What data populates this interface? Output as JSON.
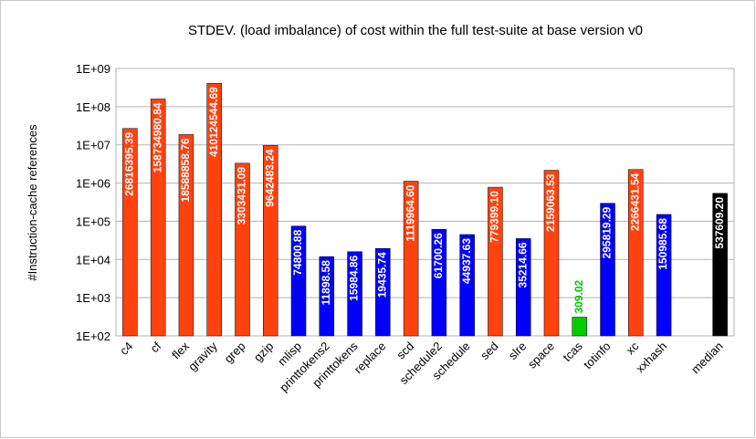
{
  "chart_data": {
    "type": "bar",
    "title": "STDEV. (load imbalance) of cost within the full test-suite at base version v0",
    "y_label": "#Instruction-cache references",
    "categories": [
      "c4",
      "cf",
      "flex",
      "gravity",
      "grep",
      "gzip",
      "mlisp",
      "printtokens2",
      "printtokens",
      "replace",
      "scd",
      "schedule2",
      "schedule",
      "sed",
      "slre",
      "space",
      "tcas",
      "totinfo",
      "xc",
      "xxhash",
      null,
      "median"
    ],
    "values": [
      26816395.39,
      158734980.84,
      18588858.76,
      410124544.69,
      3303431.09,
      9642483.24,
      74800.88,
      11898.58,
      15984.86,
      19435.74,
      1119964.6,
      61700.26,
      44937.63,
      779399.1,
      35214.66,
      2159063.53,
      309.02,
      295819.29,
      2266431.54,
      150985.68,
      null,
      537609.2
    ],
    "value_labels": [
      "26816395.39",
      "158734980.84",
      "18588858.76",
      "410124544.69",
      "3303431.09",
      "9642483.24",
      "74800.88",
      "11898.58",
      "15984.86",
      "19435.74",
      "1119964.60",
      "61700.26",
      "44937.63",
      "779399.10",
      "35214.66",
      "2159063.53",
      "309.02",
      "295819.29",
      "2266431.54",
      "150985.68",
      null,
      "537609.20"
    ],
    "colors": [
      "#ff420e",
      "#ff420e",
      "#ff420e",
      "#ff420e",
      "#ff420e",
      "#ff420e",
      "#0000ff",
      "#0000ff",
      "#0000ff",
      "#0000ff",
      "#ff420e",
      "#0000ff",
      "#0000ff",
      "#ff420e",
      "#0000ff",
      "#ff420e",
      "#00cc00",
      "#0000ff",
      "#ff420e",
      "#0000ff",
      null,
      "#000000"
    ],
    "log_scale": true,
    "ylim": [
      100,
      1000000000
    ],
    "yticks": [
      {
        "value": 100,
        "label": "1E+02"
      },
      {
        "value": 1000,
        "label": "1E+03"
      },
      {
        "value": 10000,
        "label": "1E+04"
      },
      {
        "value": 100000,
        "label": "1E+05"
      },
      {
        "value": 1000000,
        "label": "1E+06"
      },
      {
        "value": 10000000,
        "label": "1E+07"
      },
      {
        "value": 100000000,
        "label": "1E+08"
      },
      {
        "value": 1000000000,
        "label": "1E+09"
      }
    ],
    "grid": true
  }
}
